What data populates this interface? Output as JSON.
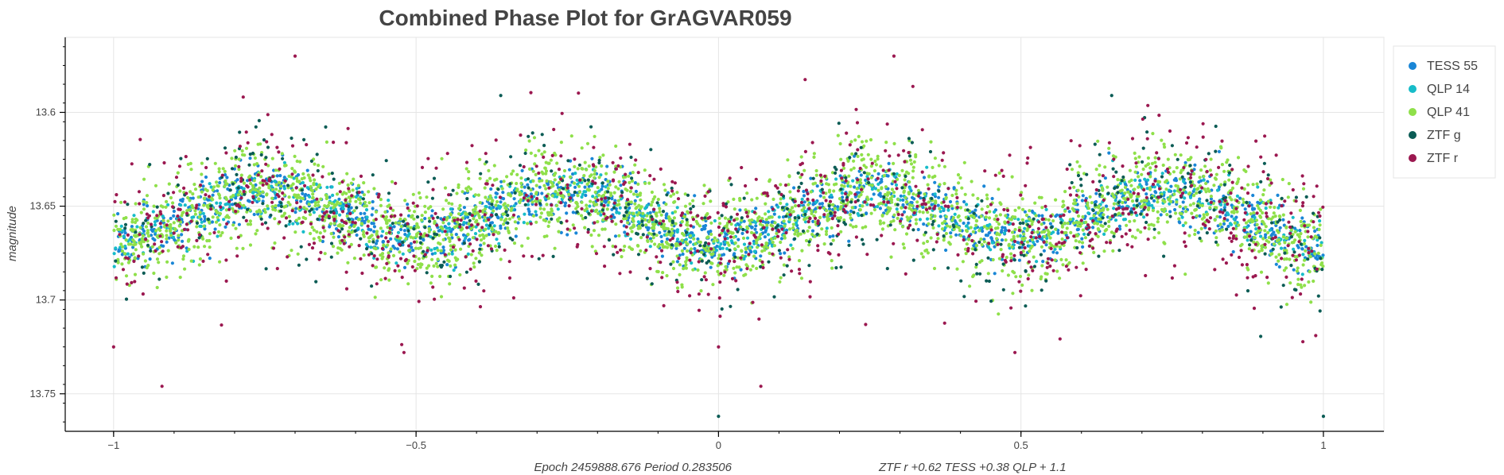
{
  "chart_data": {
    "type": "scatter",
    "title": "Combined Phase Plot for GrAGVAR059",
    "xlabel": "Epoch  2459888.676   Period  0.283506",
    "xlabel_note": "ZTF r +0.62     TESS +0.38     QLP + 1.1",
    "ylabel": "magnitude",
    "xlim": [
      -1.08,
      1.1
    ],
    "ylim": [
      13.77,
      13.56
    ],
    "y_inverted": true,
    "x_ticks": [
      -1,
      -0.5,
      0,
      0.5,
      1
    ],
    "x_tick_labels": [
      "−1",
      "−0.5",
      "0",
      "0.5",
      "1"
    ],
    "y_ticks": [
      13.6,
      13.65,
      13.7,
      13.75
    ],
    "y_tick_labels": [
      "13.6",
      "13.65",
      "13.7",
      "13.75"
    ],
    "grid": true,
    "legend_position": "top-right",
    "model": {
      "mean": 13.655,
      "primary_amplitude": 0.013,
      "secondary_amplitude": 0.002,
      "minimum_phases": [
        -1,
        -0.5,
        0,
        0.5,
        1
      ],
      "maximum_phases": [
        -0.75,
        -0.25,
        0.25,
        0.75
      ]
    },
    "series": [
      {
        "name": "TESS 55",
        "color": "#1a86d6",
        "scatter": 0.008,
        "count": 1400
      },
      {
        "name": "QLP  14",
        "color": "#17bcc9",
        "scatter": 0.007,
        "count": 700
      },
      {
        "name": "QLP  41",
        "color": "#8fe04a",
        "scatter": 0.013,
        "count": 2600
      },
      {
        "name": "ZTF g",
        "color": "#0b5c55",
        "scatter": 0.018,
        "count": 500
      },
      {
        "name": "ZTF r",
        "color": "#9b1850",
        "scatter": 0.02,
        "count": 900
      }
    ],
    "outliers": [
      {
        "series": "ZTF r",
        "x": -0.7,
        "y": 13.57
      },
      {
        "series": "ZTF r",
        "x": 0.29,
        "y": 13.57
      },
      {
        "series": "ZTF r",
        "x": -0.92,
        "y": 13.746
      },
      {
        "series": "ZTF r",
        "x": 0.07,
        "y": 13.746
      },
      {
        "series": "ZTF g",
        "x": 0.0,
        "y": 13.762
      },
      {
        "series": "ZTF g",
        "x": 1.0,
        "y": 13.762
      },
      {
        "series": "ZTF g",
        "x": -0.36,
        "y": 13.591
      },
      {
        "series": "ZTF g",
        "x": 0.65,
        "y": 13.591
      },
      {
        "series": "ZTF r",
        "x": -0.52,
        "y": 13.728
      },
      {
        "series": "ZTF r",
        "x": 0.49,
        "y": 13.728
      },
      {
        "series": "ZTF r",
        "x": -1.0,
        "y": 13.725
      },
      {
        "series": "ZTF r",
        "x": 0.0,
        "y": 13.725
      }
    ]
  }
}
